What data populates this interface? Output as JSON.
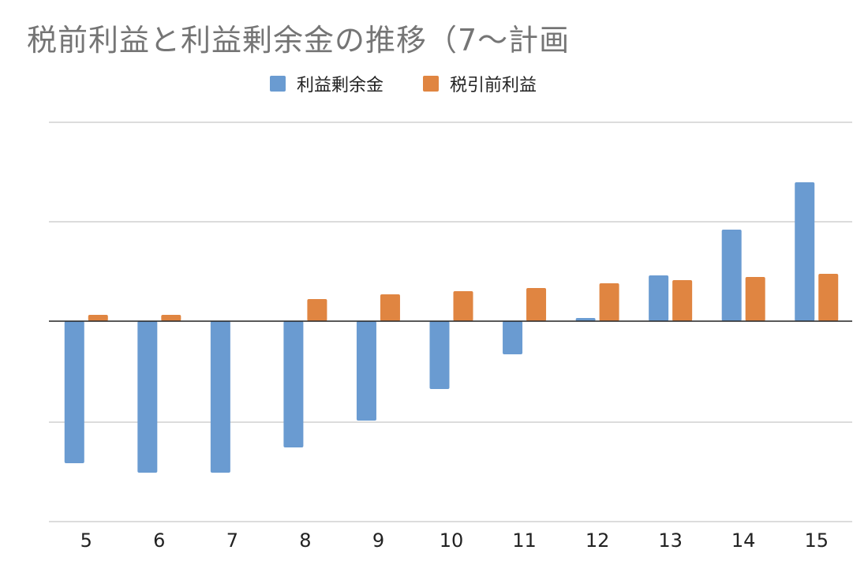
{
  "chart_data": {
    "type": "bar",
    "title": "税前利益と利益剰余金の推移（7〜計画",
    "categories": [
      "5",
      "6",
      "7",
      "8",
      "9",
      "10",
      "11",
      "12",
      "13",
      "14",
      "15"
    ],
    "series": [
      {
        "name": "利益剰余金",
        "color": "#6a9bd1",
        "values": [
          -9.0,
          -9.6,
          -9.6,
          -8.0,
          -6.3,
          -4.3,
          -2.1,
          0.2,
          2.9,
          5.8,
          8.8
        ]
      },
      {
        "name": "税引前利益",
        "color": "#e08541",
        "values": [
          0.4,
          0.4,
          0.0,
          1.4,
          1.7,
          1.9,
          2.1,
          2.4,
          2.6,
          2.8,
          3.0
        ]
      }
    ],
    "ylim": [
      -12.7,
      12.6
    ],
    "grid": true,
    "legend_position": "top",
    "xlabel": "",
    "ylabel": ""
  }
}
